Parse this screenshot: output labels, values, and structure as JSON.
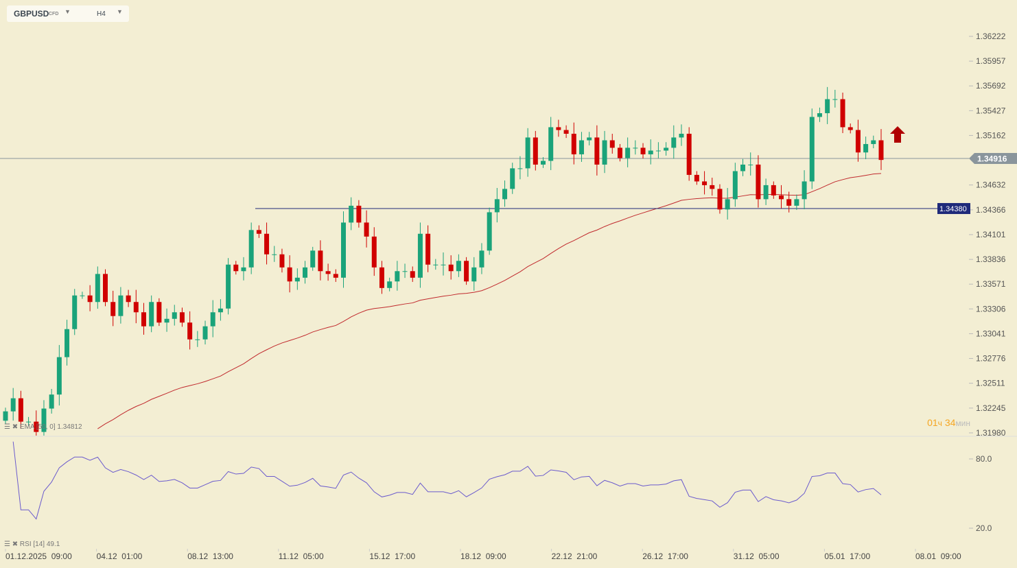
{
  "header": {
    "symbol": "GBPUSD",
    "type": "CFD",
    "timeframe": "H4"
  },
  "indicators": {
    "ema_label": "EMA [50, 0]",
    "ema_value": "1.34812",
    "rsi_label": "RSI",
    "rsi_period": "[14]",
    "rsi_value": "49.1"
  },
  "timer": {
    "hours": "01",
    "h_unit": "ч",
    "minutes": "34",
    "m_unit": "мин"
  },
  "colors": {
    "bg": "#f3eed3",
    "up": "#1aa37a",
    "down": "#d00000",
    "ema": "#c0282c",
    "rsi": "#6a5acd",
    "level": "#1f2a7a",
    "price": "#8a959c"
  },
  "chart_data": {
    "type": "candlestick",
    "price_axis": {
      "min": 1.3198,
      "max": 1.36222,
      "ticks": [
        "1.36222",
        "1.35957",
        "1.35692",
        "1.35427",
        "1.35162",
        "1.34632",
        "1.34366",
        "1.34101",
        "1.33836",
        "1.33571",
        "1.33306",
        "1.33041",
        "1.32776",
        "1.32511",
        "1.32245",
        "1.31980"
      ]
    },
    "current_price": "1.34916",
    "level_line": "1.34380",
    "rsi_axis": {
      "ticks": [
        "80.0",
        "20.0"
      ]
    },
    "x_labels": [
      "01.12.2025  09:00",
      "04.12  01:00",
      "08.12  13:00",
      "11.12  05:00",
      "15.12  17:00",
      "18.12  09:00",
      "22.12  21:00",
      "26.12  17:00",
      "31.12  05:00",
      "05.01  17:00",
      "08.01  09:00"
    ],
    "closes": [
      1.3221,
      1.3235,
      1.321,
      1.321,
      1.3199,
      1.3224,
      1.3239,
      1.3279,
      1.3309,
      1.3345,
      1.3345,
      1.3338,
      1.3368,
      1.3338,
      1.3323,
      1.3345,
      1.3338,
      1.3327,
      1.3312,
      1.3338,
      1.3316,
      1.332,
      1.3327,
      1.3316,
      1.3298,
      1.3298,
      1.3312,
      1.3327,
      1.3331,
      1.3378,
      1.3371,
      1.3375,
      1.3415,
      1.3411,
      1.3389,
      1.3389,
      1.3375,
      1.336,
      1.3364,
      1.3375,
      1.3393,
      1.3371,
      1.3368,
      1.3364,
      1.3423,
      1.3441,
      1.3423,
      1.3408,
      1.3375,
      1.3353,
      1.336,
      1.3371,
      1.3371,
      1.3364,
      1.3411,
      1.3378,
      1.3378,
      1.3378,
      1.3371,
      1.3382,
      1.336,
      1.3375,
      1.3393,
      1.3434,
      1.3448,
      1.3459,
      1.3481,
      1.3481,
      1.3514,
      1.3485,
      1.3489,
      1.3525,
      1.3522,
      1.3518,
      1.3496,
      1.3511,
      1.3514,
      1.3485,
      1.3511,
      1.3503,
      1.3492,
      1.3503,
      1.3503,
      1.3496,
      1.35,
      1.35,
      1.3503,
      1.3514,
      1.3518,
      1.3474,
      1.3467,
      1.3463,
      1.3459,
      1.3437,
      1.3448,
      1.3478,
      1.3485,
      1.3485,
      1.3448,
      1.3463,
      1.3452,
      1.3448,
      1.3441,
      1.3448,
      1.3467,
      1.3536,
      1.354,
      1.3555,
      1.3555,
      1.3525,
      1.3522,
      1.3498,
      1.3507,
      1.3511,
      1.349
    ]
  }
}
